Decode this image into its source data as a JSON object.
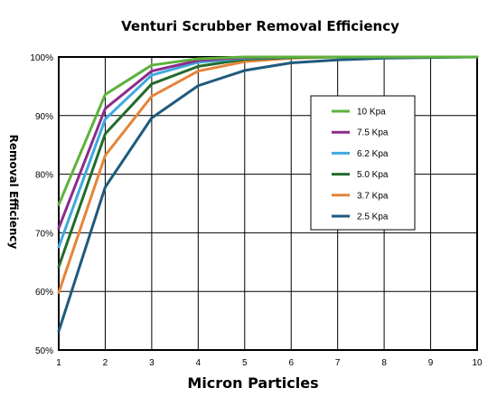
{
  "chart_data": {
    "type": "line",
    "title": "Venturi Scrubber Removal Efficiency",
    "xlabel": "Micron Particles",
    "ylabel": "Removal Efficiency",
    "x": [
      1,
      2,
      3,
      4,
      5,
      6,
      7,
      8,
      9,
      10
    ],
    "xlim": [
      1,
      10
    ],
    "ylim": [
      50,
      100
    ],
    "x_ticks": [
      "1",
      "2",
      "3",
      "4",
      "5",
      "6",
      "7",
      "8",
      "9",
      "10"
    ],
    "y_ticks": [
      "50%",
      "60%",
      "70%",
      "80%",
      "90%",
      "100%"
    ],
    "y_tick_values": [
      50,
      60,
      70,
      80,
      90,
      100
    ],
    "grid": true,
    "legend_position": "right-center",
    "series": [
      {
        "name": "10  Kpa",
        "color": "#5db23c",
        "values": [
          74.8,
          93.6,
          98.6,
          99.7,
          100,
          100,
          100,
          100,
          100,
          100
        ]
      },
      {
        "name": "7.5 Kpa",
        "color": "#8c2c8c",
        "values": [
          70.8,
          91.2,
          97.6,
          99.4,
          99.9,
          100,
          100,
          100,
          100,
          100
        ]
      },
      {
        "name": "6.2 Kpa",
        "color": "#3fa9e0",
        "values": [
          67.6,
          89.4,
          96.9,
          99.1,
          99.8,
          100,
          100,
          100,
          100,
          100
        ]
      },
      {
        "name": "5.0 Kpa",
        "color": "#236b2b",
        "values": [
          64.2,
          86.9,
          95.4,
          98.4,
          99.6,
          99.9,
          100,
          100,
          100,
          100
        ]
      },
      {
        "name": "3.7 Kpa",
        "color": "#e6843a",
        "values": [
          59.8,
          83.2,
          93.3,
          97.6,
          99.2,
          99.8,
          100,
          100,
          100,
          100
        ]
      },
      {
        "name": "2.5 Kpa",
        "color": "#1f5a7c",
        "values": [
          53.2,
          77.8,
          89.6,
          95.1,
          97.7,
          99.0,
          99.5,
          99.8,
          99.9,
          100
        ]
      }
    ]
  }
}
